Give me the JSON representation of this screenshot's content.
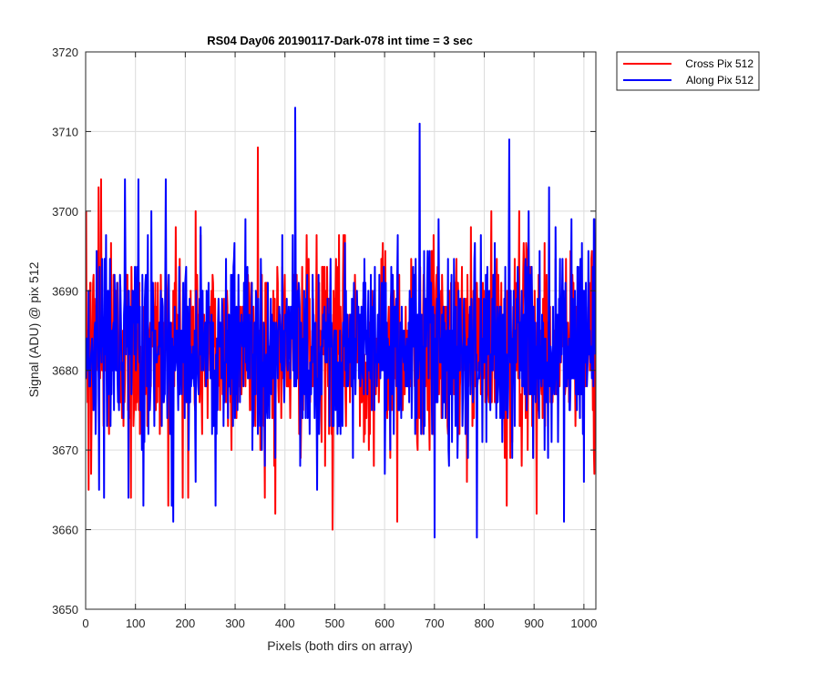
{
  "chart_data": {
    "type": "line",
    "title": "RS04 Day06 20190117-Dark-078 int time = 3 sec",
    "xlabel": "Pixels (both dirs on array)",
    "ylabel": "Signal (ADU) @ pix 512",
    "xlim": [
      0,
      1024
    ],
    "ylim": [
      3650,
      3720
    ],
    "x_ticks": [
      0,
      100,
      200,
      300,
      400,
      500,
      600,
      700,
      800,
      900,
      1000
    ],
    "y_ticks": [
      3650,
      3660,
      3670,
      3680,
      3690,
      3700,
      3710,
      3720
    ],
    "grid": true,
    "legend_position": "outside-top-right",
    "series": [
      {
        "name": "Cross Pix 512",
        "color": "#ff0000",
        "noise": {
          "n_points": 1024,
          "mean": 3683,
          "spread_std": 6,
          "min": 3660,
          "max": 3708
        },
        "notable_points": [
          {
            "x": 5,
            "y": 3665
          },
          {
            "x": 10,
            "y": 3667
          },
          {
            "x": 25,
            "y": 3703
          },
          {
            "x": 30,
            "y": 3704
          },
          {
            "x": 50,
            "y": 3696
          },
          {
            "x": 90,
            "y": 3664
          },
          {
            "x": 165,
            "y": 3663
          },
          {
            "x": 180,
            "y": 3698
          },
          {
            "x": 205,
            "y": 3664
          },
          {
            "x": 220,
            "y": 3700
          },
          {
            "x": 345,
            "y": 3708
          },
          {
            "x": 350,
            "y": 3670
          },
          {
            "x": 380,
            "y": 3662
          },
          {
            "x": 495,
            "y": 3660
          },
          {
            "x": 520,
            "y": 3697
          },
          {
            "x": 625,
            "y": 3661
          },
          {
            "x": 690,
            "y": 3670
          },
          {
            "x": 845,
            "y": 3663
          },
          {
            "x": 870,
            "y": 3700
          },
          {
            "x": 905,
            "y": 3662
          },
          {
            "x": 1015,
            "y": 3694
          },
          {
            "x": 1020,
            "y": 3670
          }
        ]
      },
      {
        "name": "Along Pix 512",
        "color": "#0000ff",
        "noise": {
          "n_points": 1024,
          "mean": 3683,
          "spread_std": 6,
          "min": 3659,
          "max": 3713
        },
        "notable_points": [
          {
            "x": 5,
            "y": 3690
          },
          {
            "x": 15,
            "y": 3675
          },
          {
            "x": 40,
            "y": 3697
          },
          {
            "x": 85,
            "y": 3664
          },
          {
            "x": 105,
            "y": 3704
          },
          {
            "x": 115,
            "y": 3663
          },
          {
            "x": 160,
            "y": 3704
          },
          {
            "x": 175,
            "y": 3661
          },
          {
            "x": 230,
            "y": 3698
          },
          {
            "x": 260,
            "y": 3663
          },
          {
            "x": 320,
            "y": 3699
          },
          {
            "x": 420,
            "y": 3713
          },
          {
            "x": 430,
            "y": 3668
          },
          {
            "x": 520,
            "y": 3696
          },
          {
            "x": 600,
            "y": 3667
          },
          {
            "x": 670,
            "y": 3711
          },
          {
            "x": 700,
            "y": 3659
          },
          {
            "x": 785,
            "y": 3659
          },
          {
            "x": 850,
            "y": 3709
          },
          {
            "x": 930,
            "y": 3703
          },
          {
            "x": 960,
            "y": 3661
          },
          {
            "x": 975,
            "y": 3699
          },
          {
            "x": 1000,
            "y": 3666
          },
          {
            "x": 1020,
            "y": 3699
          }
        ]
      }
    ]
  }
}
